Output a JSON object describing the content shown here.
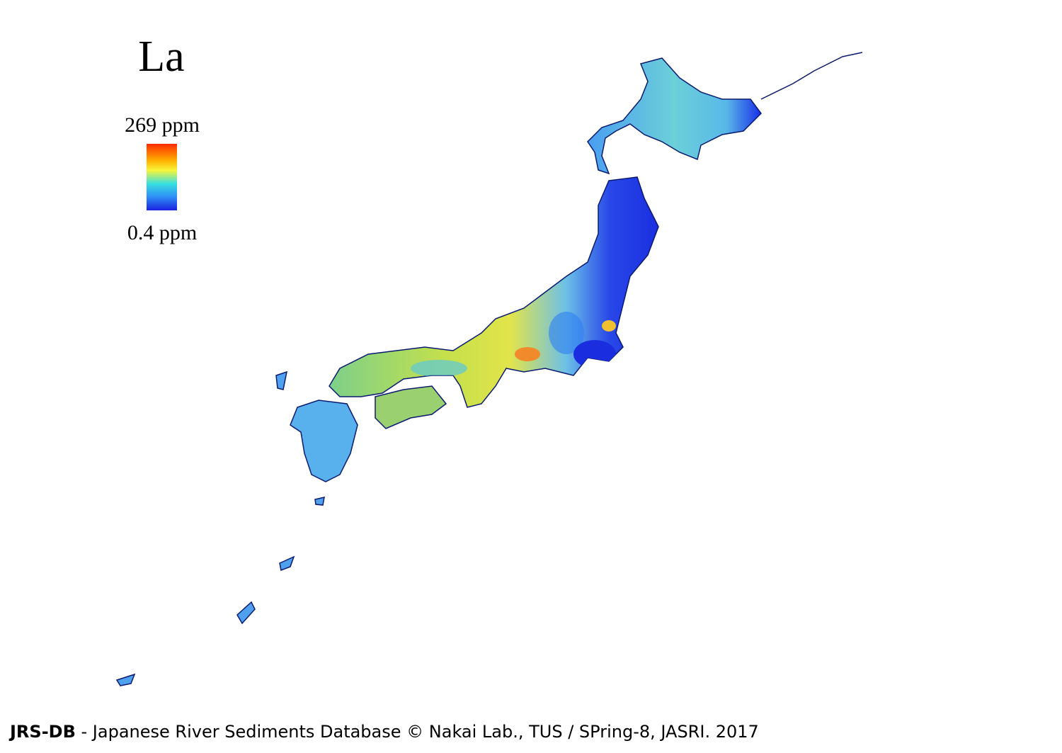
{
  "title": "La",
  "legend": {
    "max_label": "269 ppm",
    "min_label": "0.4 ppm"
  },
  "footer": {
    "brand": "JRS-DB",
    "text": " - Japanese River Sediments Database © Nakai Lab., TUS / SPring-8, JASRI. 2017"
  }
}
